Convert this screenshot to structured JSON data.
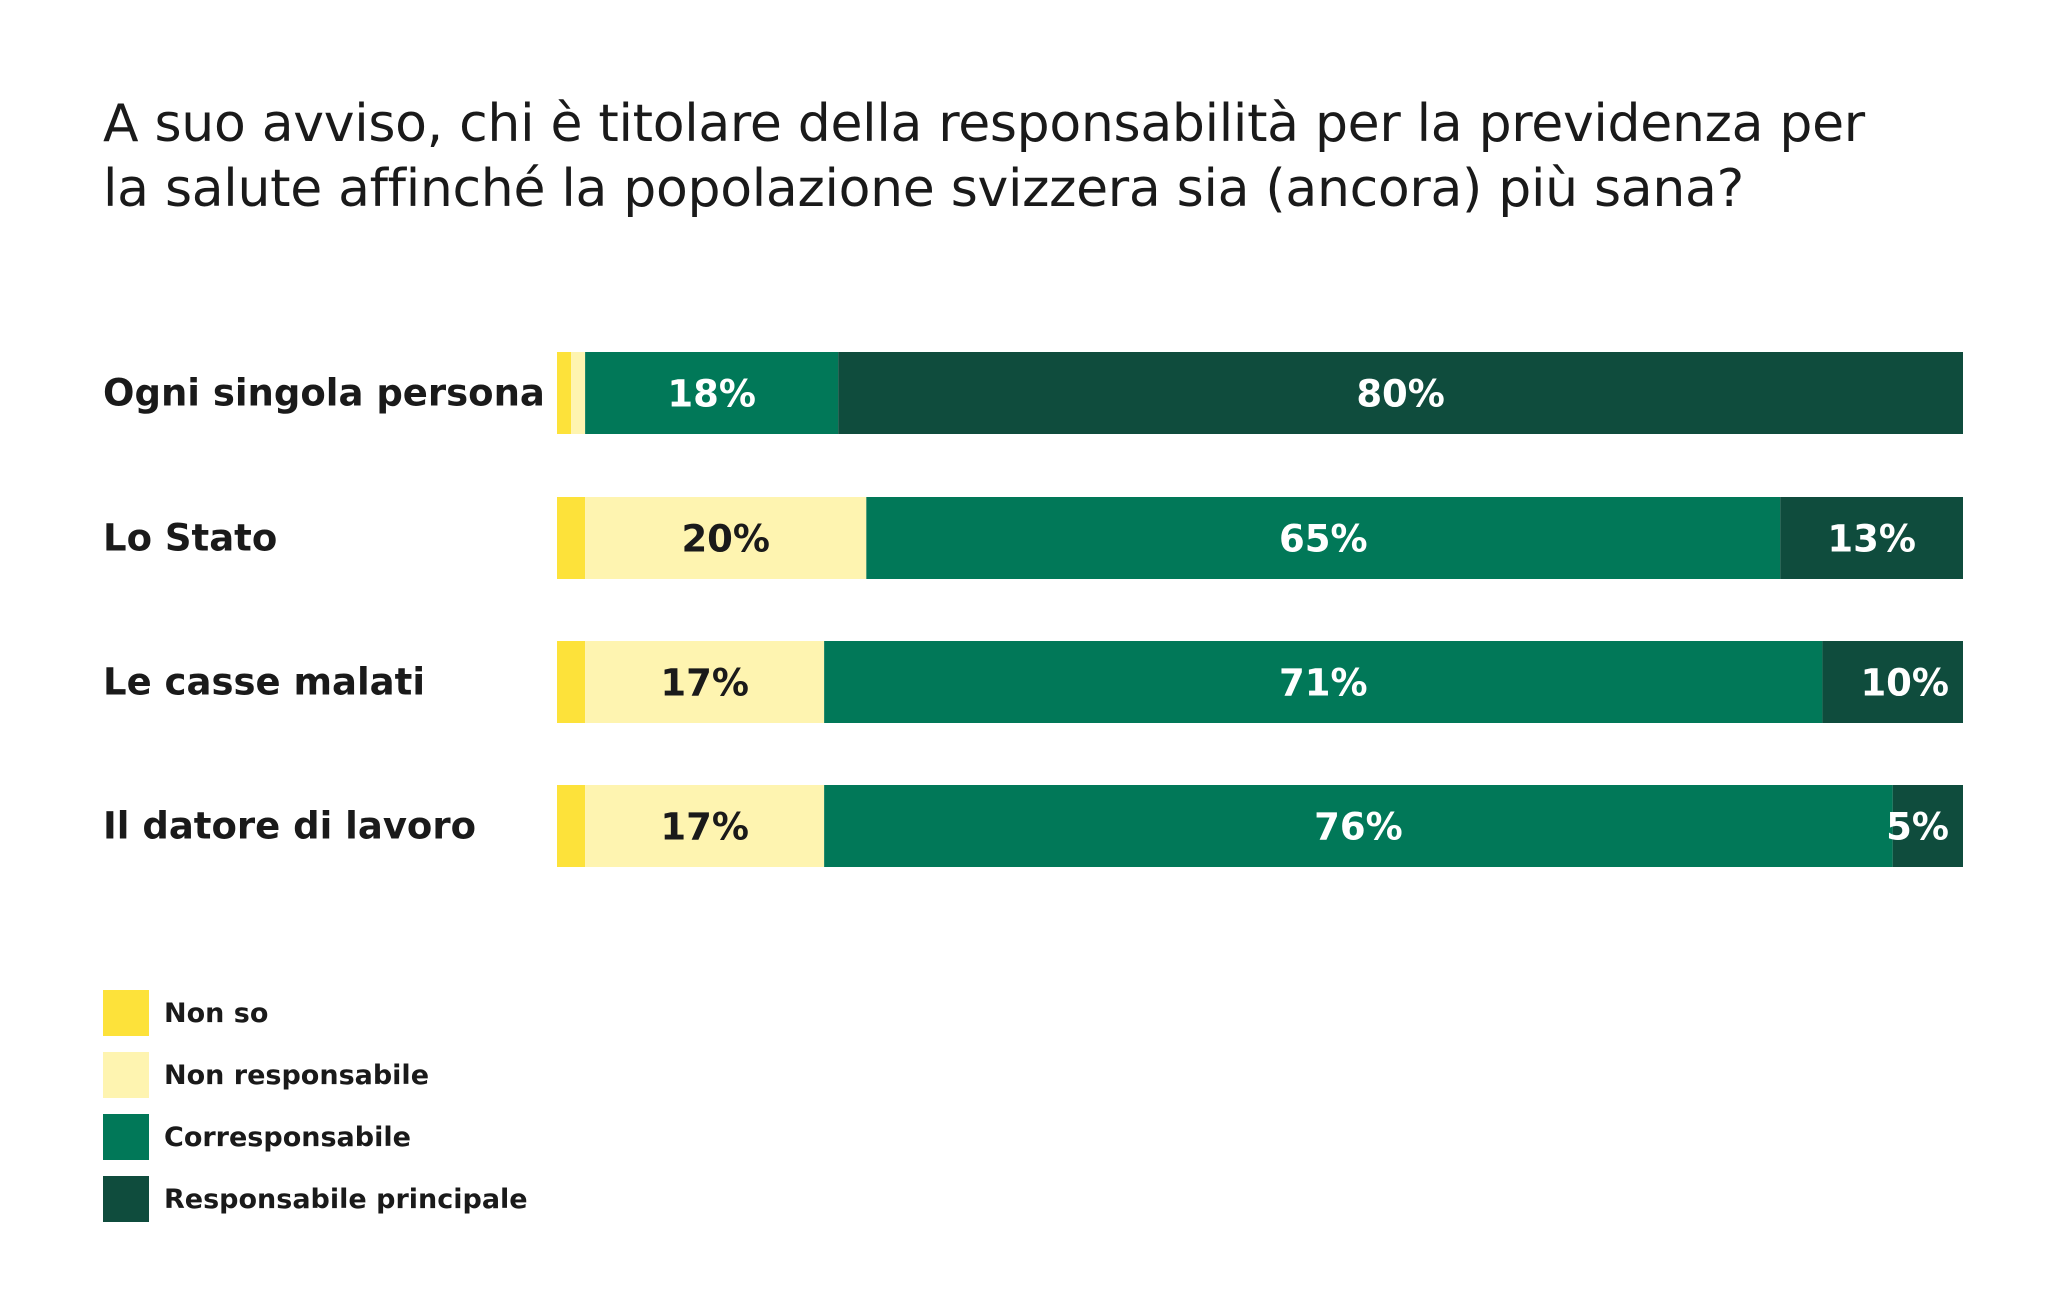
{
  "colors": {
    "non_so": "#fde23a",
    "non_responsabile": "#fef4b0",
    "corresponsabile": "#017858",
    "responsabile_principale": "#0f4c3d"
  },
  "chart_data": {
    "type": "bar",
    "orientation": "horizontal",
    "stacked": true,
    "title": "A suo avviso, chi è titolare della responsabilità per la previdenza per la salute affinché la popolazione svizzera sia (ancora) più sana?",
    "title_lines": [
      "A suo avviso, chi è titolare della responsabilità per la previdenza per",
      "la salute affinché la popolazione svizzera sia (ancora) più sana?"
    ],
    "categories": [
      "Ogni singola persona",
      "Lo Stato",
      "Le casse malati",
      "Il datore di lavoro"
    ],
    "unit": "%",
    "xlim": [
      0,
      100
    ],
    "grid": false,
    "legend_position": "bottom-left",
    "series": [
      {
        "name": "Non so",
        "color_key": "non_so",
        "values": [
          1,
          2,
          2,
          2
        ],
        "labels": [
          "",
          "",
          "",
          ""
        ]
      },
      {
        "name": "Non responsabile",
        "color_key": "non_responsabile",
        "values": [
          1,
          20,
          17,
          17
        ],
        "labels": [
          "",
          "20%",
          "17%",
          "17%"
        ]
      },
      {
        "name": "Corresponsabile",
        "color_key": "corresponsabile",
        "values": [
          18,
          65,
          71,
          76
        ],
        "labels": [
          "18%",
          "65%",
          "71%",
          "76%"
        ]
      },
      {
        "name": "Responsabile principale",
        "color_key": "responsabile_principale",
        "values": [
          80,
          13,
          10,
          5
        ],
        "labels": [
          "80%",
          "13%",
          "10%",
          "5%"
        ]
      }
    ]
  }
}
